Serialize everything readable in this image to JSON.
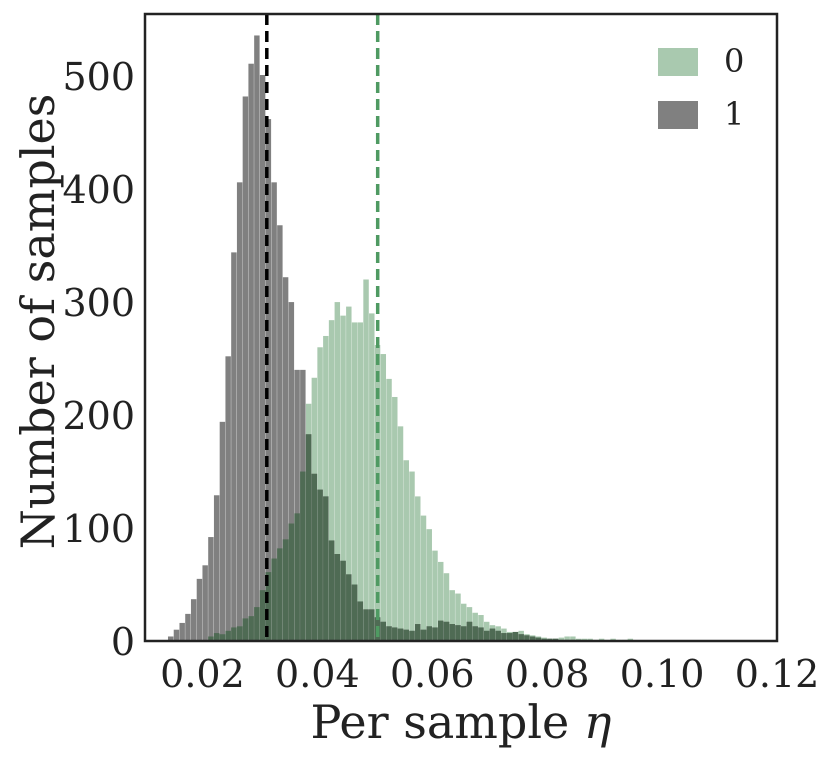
{
  "chart_data": {
    "type": "bar",
    "title": "",
    "xlabel": "Per sample",
    "xlabel_symbol": "η",
    "ylabel": "Number of samples",
    "xlim": [
      0.01,
      0.12
    ],
    "ylim": [
      0,
      555
    ],
    "x_ticks": [
      "0.02",
      "0.04",
      "0.06",
      "0.08",
      "0.10",
      "0.12"
    ],
    "x_tick_values": [
      0.02,
      0.04,
      0.06,
      0.08,
      0.1,
      0.12
    ],
    "y_ticks": [
      "0",
      "100",
      "200",
      "300",
      "400",
      "500"
    ],
    "y_tick_values": [
      0,
      100,
      200,
      300,
      400,
      500
    ],
    "grid": false,
    "legend_position": "top-right",
    "bin_width": 0.001,
    "series": [
      {
        "name": "0",
        "color": "#a9c9af",
        "overlap_color": "#4f6b54",
        "bin_start": 0.021,
        "counts": [
          4,
          7,
          6,
          9,
          12,
          13,
          20,
          22,
          30,
          45,
          61,
          73,
          82,
          90,
          104,
          113,
          150,
          210,
          233,
          260,
          270,
          284,
          300,
          288,
          296,
          282,
          282,
          320,
          290,
          262,
          254,
          232,
          216,
          190,
          160,
          150,
          128,
          111,
          99,
          80,
          70,
          60,
          45,
          42,
          33,
          30,
          25,
          23,
          17,
          14,
          13,
          11,
          8,
          8,
          9,
          6,
          5,
          4,
          3,
          2,
          2,
          3,
          4,
          4,
          2,
          2,
          2,
          1,
          2,
          1,
          2,
          1,
          1,
          2
        ],
        "mean_line": 0.0505,
        "mean_line_color": "#4f9a62"
      },
      {
        "name": "1",
        "color": "#808080",
        "bin_start": 0.014,
        "counts": [
          4,
          10,
          16,
          24,
          37,
          55,
          67,
          92,
          129,
          194,
          252,
          344,
          406,
          482,
          511,
          536,
          501,
          462,
          406,
          368,
          322,
          300,
          240,
          240,
          183,
          148,
          134,
          128,
          89,
          77,
          71,
          59,
          50,
          35,
          28,
          28,
          21,
          17,
          13,
          12,
          11,
          10,
          9,
          15,
          10,
          13,
          12,
          18,
          17,
          15,
          14,
          13,
          17,
          13,
          12,
          9,
          11,
          9,
          7,
          7,
          8,
          6,
          5,
          4,
          3,
          2,
          2,
          2,
          1,
          1,
          1,
          1
        ],
        "mean_line": 0.0312,
        "mean_line_color": "#000000"
      }
    ]
  }
}
